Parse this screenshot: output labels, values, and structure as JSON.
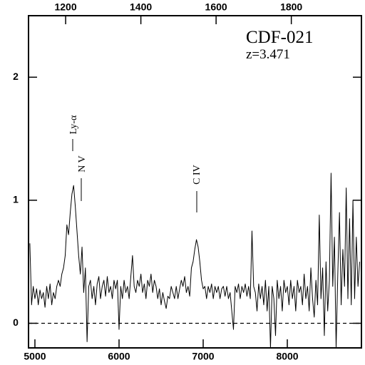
{
  "chart_data": {
    "type": "line",
    "title": "CDF-021",
    "subtitle": "z=3.471",
    "annotations": [
      "Ly-α",
      "N V",
      "C IV"
    ],
    "color": "#000000",
    "xlim": [
      4924,
      8881
    ],
    "xticks": [
      5000,
      6000,
      7000,
      8000
    ],
    "x2lim": [
      1101.3,
      1986.4
    ],
    "x2ticks": [
      1200,
      1400,
      1600,
      1800
    ],
    "ylim": [
      -0.2,
      2.5
    ],
    "yticks": [
      0,
      1,
      2
    ],
    "hline": 0,
    "x": [
      4940,
      4960,
      4980,
      5000,
      5020,
      5040,
      5060,
      5080,
      5100,
      5120,
      5140,
      5160,
      5180,
      5200,
      5220,
      5240,
      5260,
      5280,
      5300,
      5320,
      5340,
      5360,
      5380,
      5400,
      5420,
      5440,
      5460,
      5480,
      5500,
      5520,
      5540,
      5560,
      5580,
      5600,
      5620,
      5640,
      5660,
      5680,
      5700,
      5720,
      5740,
      5760,
      5780,
      5800,
      5820,
      5840,
      5860,
      5880,
      5900,
      5920,
      5940,
      5960,
      5980,
      6000,
      6020,
      6040,
      6060,
      6080,
      6100,
      6120,
      6140,
      6160,
      6180,
      6200,
      6220,
      6240,
      6260,
      6280,
      6300,
      6320,
      6340,
      6360,
      6380,
      6400,
      6420,
      6440,
      6460,
      6480,
      6500,
      6520,
      6540,
      6560,
      6580,
      6600,
      6620,
      6640,
      6660,
      6680,
      6700,
      6720,
      6740,
      6760,
      6780,
      6800,
      6820,
      6840,
      6860,
      6880,
      6900,
      6920,
      6940,
      6960,
      6980,
      7000,
      7020,
      7040,
      7060,
      7080,
      7100,
      7120,
      7140,
      7160,
      7180,
      7200,
      7220,
      7240,
      7260,
      7280,
      7300,
      7320,
      7340,
      7360,
      7380,
      7400,
      7420,
      7440,
      7460,
      7480,
      7500,
      7520,
      7540,
      7560,
      7580,
      7600,
      7620,
      7640,
      7660,
      7680,
      7700,
      7720,
      7740,
      7760,
      7780,
      7800,
      7820,
      7840,
      7860,
      7880,
      7900,
      7920,
      7940,
      7960,
      7980,
      8000,
      8020,
      8040,
      8060,
      8080,
      8100,
      8120,
      8140,
      8160,
      8180,
      8200,
      8220,
      8240,
      8260,
      8280,
      8300,
      8320,
      8340,
      8360,
      8380,
      8400,
      8420,
      8440,
      8460,
      8480,
      8500,
      8520,
      8540,
      8560,
      8580,
      8600,
      8620,
      8640,
      8660,
      8680,
      8700,
      8720,
      8740,
      8760,
      8780,
      8800,
      8820,
      8840,
      8860
    ],
    "values": [
      0.65,
      0.15,
      0.3,
      0.2,
      0.28,
      0.15,
      0.27,
      0.2,
      0.25,
      0.13,
      0.3,
      0.2,
      0.32,
      0.15,
      0.25,
      0.2,
      0.3,
      0.35,
      0.3,
      0.4,
      0.45,
      0.55,
      0.8,
      0.72,
      0.9,
      1.05,
      1.12,
      0.95,
      0.75,
      0.55,
      0.4,
      0.62,
      0.25,
      0.45,
      -0.15,
      0.3,
      0.35,
      0.2,
      0.3,
      0.15,
      0.32,
      0.38,
      0.2,
      0.3,
      0.35,
      0.22,
      0.38,
      0.25,
      0.3,
      0.2,
      0.35,
      0.28,
      0.35,
      -0.05,
      0.3,
      0.2,
      0.35,
      0.25,
      0.3,
      0.2,
      0.38,
      0.55,
      0.3,
      0.25,
      0.35,
      0.3,
      0.4,
      0.25,
      0.32,
      0.2,
      0.35,
      0.3,
      0.4,
      0.25,
      0.35,
      0.3,
      0.2,
      0.28,
      0.15,
      0.25,
      0.18,
      0.12,
      0.22,
      0.2,
      0.3,
      0.25,
      0.2,
      0.3,
      0.2,
      0.28,
      0.35,
      0.3,
      0.38,
      0.25,
      0.3,
      0.22,
      0.45,
      0.5,
      0.6,
      0.68,
      0.62,
      0.5,
      0.35,
      0.28,
      0.3,
      0.2,
      0.3,
      0.25,
      0.32,
      0.2,
      0.3,
      0.25,
      0.3,
      0.2,
      0.28,
      0.3,
      0.22,
      0.3,
      0.2,
      0.25,
      0.1,
      -0.05,
      0.3,
      0.25,
      0.32,
      0.2,
      0.3,
      0.25,
      0.32,
      0.22,
      0.3,
      0.2,
      0.75,
      0.3,
      0.25,
      0.1,
      0.32,
      0.2,
      0.3,
      0.15,
      0.35,
      0.1,
      0.3,
      -0.2,
      0.3,
      0.2,
      -0.1,
      0.35,
      0.2,
      0.3,
      0.1,
      0.35,
      0.25,
      0.3,
      0.15,
      0.35,
      0.2,
      0.3,
      0.1,
      0.35,
      0.25,
      0.3,
      0.15,
      0.4,
      0.2,
      0.3,
      0.1,
      0.45,
      0.2,
      0.05,
      0.35,
      0.15,
      0.88,
      0.2,
      0.45,
      -0.1,
      0.5,
      0.1,
      0.35,
      1.22,
      0.3,
      0.7,
      -0.2,
      0.4,
      0.9,
      0.15,
      0.6,
      0.3,
      1.1,
      0.2,
      0.85,
      0.15,
      1.0,
      0.2,
      0.7,
      0.3,
      0.5
    ]
  }
}
